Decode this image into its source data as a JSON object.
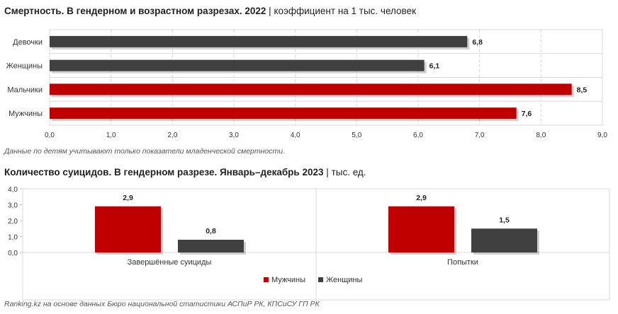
{
  "chart_data": [
    {
      "type": "bar",
      "orientation": "horizontal",
      "title": "Смертность. В гендерном и возрастном разрезах. 2022",
      "subtitle": "коэффициент на 1 тыс. человек",
      "categories": [
        "Девочки",
        "Женщины",
        "Мальчики",
        "Мужчины"
      ],
      "values": [
        6.8,
        6.1,
        8.5,
        7.6
      ],
      "value_labels": [
        "6,8",
        "6,1",
        "8,5",
        "7,6"
      ],
      "colors": [
        "#404040",
        "#404040",
        "#c00000",
        "#c00000"
      ],
      "xlim": [
        0,
        9
      ],
      "ticks": [
        "0,0",
        "1,0",
        "2,0",
        "3,0",
        "4,0",
        "5,0",
        "6,0",
        "7,0",
        "8,0",
        "9,0"
      ],
      "grid": true
    },
    {
      "type": "bar",
      "orientation": "vertical",
      "title": "Количество суицидов. В гендерном разрезе. Январь–декабрь 2023",
      "subtitle": "тыс. ед.",
      "categories": [
        "Завершённые суициды",
        "Попытки"
      ],
      "series": [
        {
          "name": "Мужчины",
          "values": [
            2.9,
            2.9
          ],
          "value_labels": [
            "2,9",
            "2,9"
          ],
          "color": "#c00000"
        },
        {
          "name": "Женщины",
          "values": [
            0.8,
            1.5
          ],
          "value_labels": [
            "0,8",
            "1,5"
          ],
          "color": "#404040"
        }
      ],
      "ylim": [
        0,
        4
      ],
      "ticks": [
        "0,0",
        "1,0",
        "2,0",
        "3,0",
        "4,0"
      ],
      "legend": "bottom",
      "grid": true
    }
  ],
  "note": "Данные по детям учитывают только показатели младенческой смертности.",
  "source": "Ranking.kz на основе данных Бюро национальной статистики АСПиР РК, КПСиСУ ГП РК",
  "separator": "|"
}
